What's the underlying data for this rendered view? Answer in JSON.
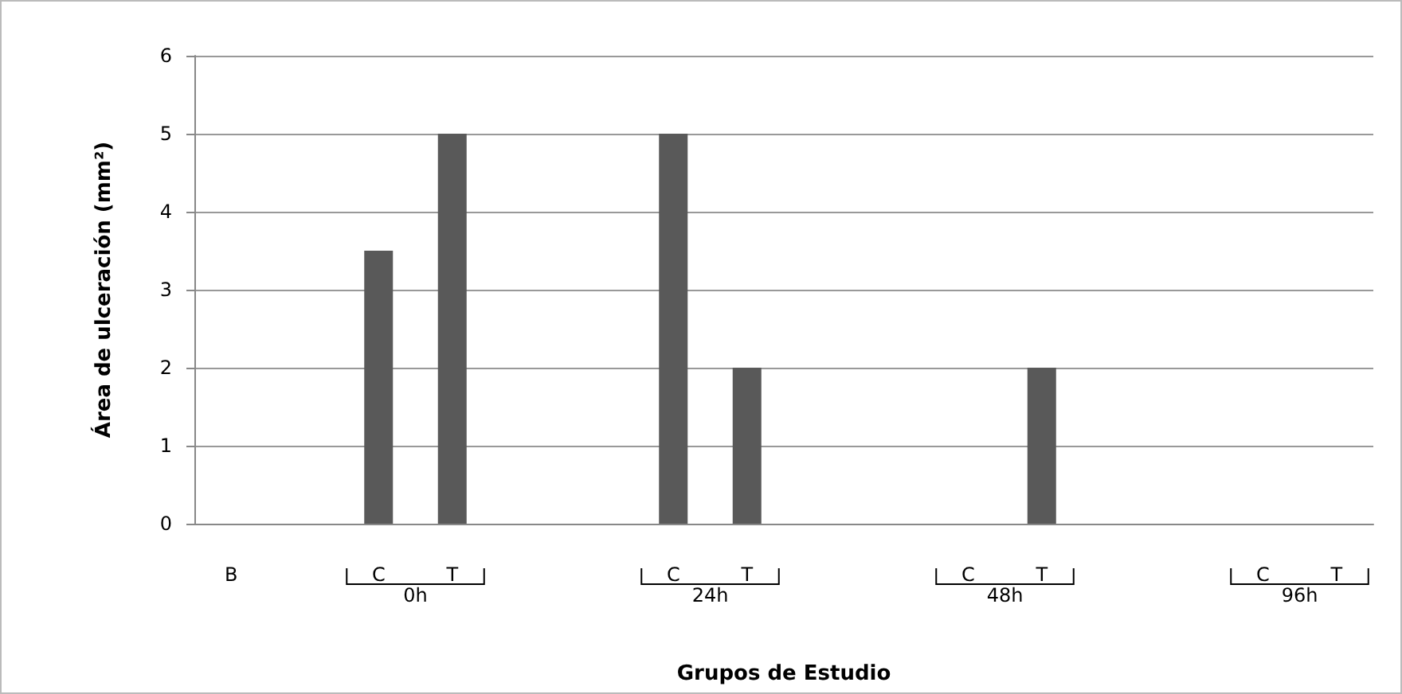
{
  "chart_data": {
    "type": "bar",
    "ylabel": "Área de ulceración (mm²)",
    "xlabel": "Grupos de Estudio",
    "categories": [
      "B",
      null,
      "C",
      "T",
      null,
      null,
      "C",
      "T",
      null,
      null,
      "C",
      "T",
      null,
      null,
      "C",
      "T"
    ],
    "values": [
      0,
      null,
      3.5,
      5,
      null,
      null,
      5,
      2,
      null,
      null,
      0,
      2,
      null,
      null,
      0,
      0
    ],
    "color": "#595959",
    "ylim": [
      0,
      6
    ],
    "yticks": [
      0,
      1,
      2,
      3,
      4,
      5,
      6
    ],
    "grid": "y",
    "annotations": [
      "0h",
      "24h",
      "48h",
      "96h"
    ]
  }
}
